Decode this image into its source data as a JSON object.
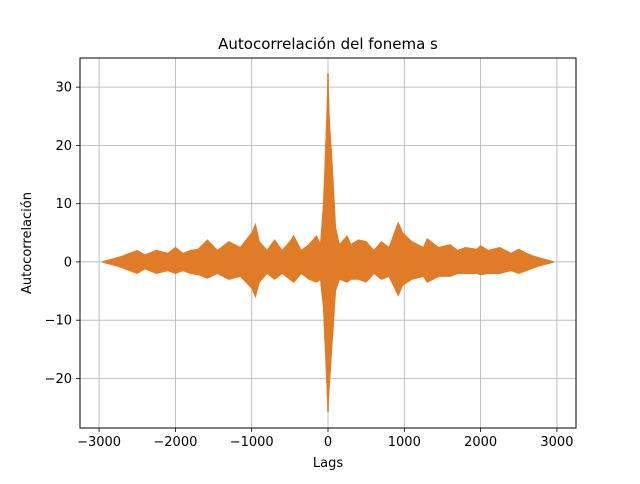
{
  "chart_data": {
    "type": "line",
    "title": "Autocorrelación del fonema s",
    "xlabel": "Lags",
    "ylabel": "Autocorrelación",
    "xlim": [
      -3250,
      3250
    ],
    "ylim": [
      -28.5,
      35
    ],
    "grid": true,
    "legend": "none",
    "x_ticks": [
      -3000,
      -2000,
      -1000,
      0,
      1000,
      2000,
      3000
    ],
    "x_tick_labels": [
      "−3000",
      "−2000",
      "−1000",
      "0",
      "1000",
      "2000",
      "3000"
    ],
    "y_ticks": [
      -20,
      -10,
      0,
      10,
      20,
      30
    ],
    "y_tick_labels": [
      "−20",
      "−10",
      "0",
      "10",
      "20",
      "30"
    ],
    "series": [
      {
        "color": "#e07b28",
        "x_range": [
          -2950,
          2950
        ],
        "peak": 32.3,
        "min": -25.8,
        "envelope_upper": [
          [
            -2950,
            0.1
          ],
          [
            -2800,
            0.6
          ],
          [
            -2700,
            1.0
          ],
          [
            -2600,
            1.5
          ],
          [
            -2500,
            2.0
          ],
          [
            -2400,
            1.2
          ],
          [
            -2250,
            2.0
          ],
          [
            -2100,
            1.5
          ],
          [
            -2000,
            2.5
          ],
          [
            -1900,
            1.5
          ],
          [
            -1800,
            2.0
          ],
          [
            -1700,
            2.2
          ],
          [
            -1580,
            3.8
          ],
          [
            -1450,
            2.0
          ],
          [
            -1300,
            3.5
          ],
          [
            -1150,
            2.5
          ],
          [
            -1000,
            5.0
          ],
          [
            -950,
            6.5
          ],
          [
            -900,
            3.5
          ],
          [
            -800,
            2.0
          ],
          [
            -700,
            3.8
          ],
          [
            -600,
            2.0
          ],
          [
            -500,
            3.5
          ],
          [
            -450,
            4.5
          ],
          [
            -350,
            2.0
          ],
          [
            -250,
            3.0
          ],
          [
            -150,
            4.5
          ],
          [
            -100,
            3.0
          ],
          [
            -60,
            10.0
          ],
          [
            -20,
            24.0
          ],
          [
            0,
            32.3
          ],
          [
            20,
            24.0
          ],
          [
            60,
            16.0
          ],
          [
            100,
            6.0
          ],
          [
            150,
            3.0
          ],
          [
            250,
            4.5
          ],
          [
            300,
            3.0
          ],
          [
            400,
            3.8
          ],
          [
            500,
            3.5
          ],
          [
            600,
            2.0
          ],
          [
            700,
            3.5
          ],
          [
            800,
            2.5
          ],
          [
            920,
            6.8
          ],
          [
            980,
            5.0
          ],
          [
            1100,
            3.5
          ],
          [
            1250,
            2.5
          ],
          [
            1300,
            4.0
          ],
          [
            1450,
            2.5
          ],
          [
            1600,
            3.0
          ],
          [
            1700,
            2.0
          ],
          [
            1800,
            2.5
          ],
          [
            1950,
            2.2
          ],
          [
            2000,
            2.8
          ],
          [
            2100,
            2.0
          ],
          [
            2250,
            2.5
          ],
          [
            2400,
            1.5
          ],
          [
            2500,
            2.2
          ],
          [
            2600,
            1.5
          ],
          [
            2700,
            1.0
          ],
          [
            2800,
            0.6
          ],
          [
            2950,
            0.1
          ]
        ],
        "envelope_lower": [
          [
            -2950,
            -0.1
          ],
          [
            -2800,
            -0.6
          ],
          [
            -2700,
            -1.0
          ],
          [
            -2600,
            -1.5
          ],
          [
            -2500,
            -2.0
          ],
          [
            -2400,
            -1.2
          ],
          [
            -2250,
            -2.0
          ],
          [
            -2100,
            -1.5
          ],
          [
            -2000,
            -2.0
          ],
          [
            -1900,
            -1.5
          ],
          [
            -1800,
            -2.0
          ],
          [
            -1700,
            -2.2
          ],
          [
            -1580,
            -2.8
          ],
          [
            -1450,
            -2.0
          ],
          [
            -1300,
            -3.0
          ],
          [
            -1150,
            -2.5
          ],
          [
            -1000,
            -4.5
          ],
          [
            -950,
            -6.0
          ],
          [
            -900,
            -3.5
          ],
          [
            -800,
            -2.0
          ],
          [
            -700,
            -3.0
          ],
          [
            -600,
            -2.0
          ],
          [
            -500,
            -3.0
          ],
          [
            -450,
            -3.5
          ],
          [
            -350,
            -2.0
          ],
          [
            -250,
            -3.0
          ],
          [
            -150,
            -3.5
          ],
          [
            -100,
            -3.0
          ],
          [
            -60,
            -8.0
          ],
          [
            -20,
            -20.0
          ],
          [
            0,
            -25.8
          ],
          [
            20,
            -21.0
          ],
          [
            60,
            -13.0
          ],
          [
            100,
            -5.0
          ],
          [
            150,
            -3.0
          ],
          [
            250,
            -3.5
          ],
          [
            300,
            -3.0
          ],
          [
            400,
            -3.0
          ],
          [
            500,
            -3.5
          ],
          [
            600,
            -2.0
          ],
          [
            700,
            -3.0
          ],
          [
            800,
            -2.5
          ],
          [
            920,
            -5.8
          ],
          [
            980,
            -4.0
          ],
          [
            1100,
            -3.0
          ],
          [
            1250,
            -2.5
          ],
          [
            1300,
            -3.5
          ],
          [
            1450,
            -2.5
          ],
          [
            1600,
            -2.5
          ],
          [
            1700,
            -2.0
          ],
          [
            1800,
            -2.0
          ],
          [
            1950,
            -2.0
          ],
          [
            2000,
            -2.2
          ],
          [
            2100,
            -2.0
          ],
          [
            2250,
            -2.0
          ],
          [
            2400,
            -1.5
          ],
          [
            2500,
            -2.0
          ],
          [
            2600,
            -1.5
          ],
          [
            2700,
            -1.0
          ],
          [
            2800,
            -0.6
          ],
          [
            2950,
            -0.1
          ]
        ]
      }
    ]
  }
}
